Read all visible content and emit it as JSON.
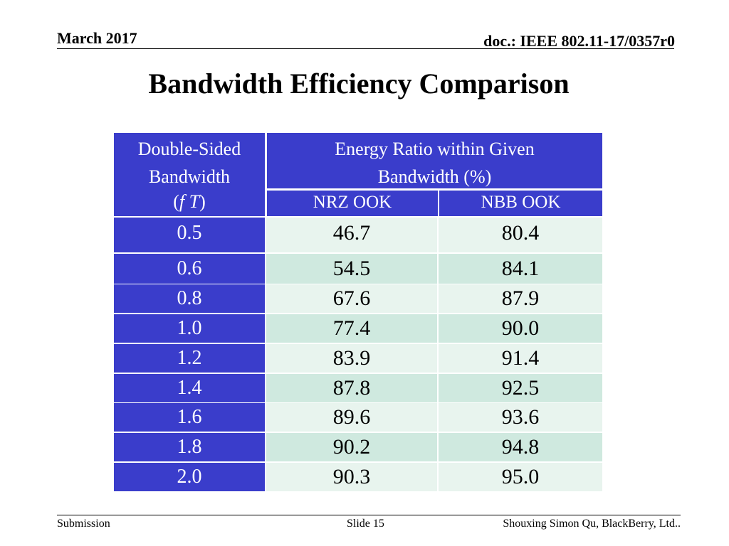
{
  "header": {
    "date": "March 2017",
    "doc_id": "doc.: IEEE 802.11-17/0357r0"
  },
  "title": "Bandwidth Efficiency Comparison",
  "table": {
    "col1_header": [
      "Double-Sided",
      "Bandwidth",
      "(f T)"
    ],
    "group_header": [
      "Energy Ratio within Given",
      "Bandwidth (%)"
    ],
    "sub_headers": [
      "NRZ OOK",
      "NBB OOK"
    ],
    "rows": [
      {
        "bw": "0.5",
        "nrz": "46.7",
        "nbb": "80.4"
      },
      {
        "bw": "0.6",
        "nrz": "54.5",
        "nbb": "84.1"
      },
      {
        "bw": "0.8",
        "nrz": "67.6",
        "nbb": "87.9"
      },
      {
        "bw": "1.0",
        "nrz": "77.4",
        "nbb": "90.0"
      },
      {
        "bw": "1.2",
        "nrz": "83.9",
        "nbb": "91.4"
      },
      {
        "bw": "1.4",
        "nrz": "87.8",
        "nbb": "92.5"
      },
      {
        "bw": "1.6",
        "nrz": "89.6",
        "nbb": "93.6"
      },
      {
        "bw": "1.8",
        "nrz": "90.2",
        "nbb": "94.8"
      },
      {
        "bw": "2.0",
        "nrz": "90.3",
        "nbb": "95.0"
      }
    ]
  },
  "footer": {
    "left": "Submission",
    "center": "Slide 15",
    "right": "Shouxing Simon Qu, BlackBerry, Ltd.."
  },
  "colors": {
    "header_blue": "#3a3dcb",
    "row_light": "#e8f4ee",
    "row_dark": "#cfe9df"
  }
}
